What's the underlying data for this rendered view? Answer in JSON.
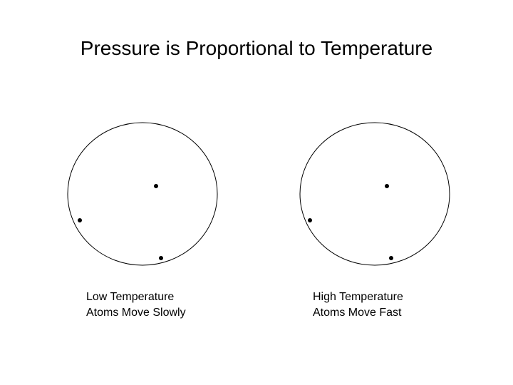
{
  "title": "Pressure is Proportional to Temperature",
  "panels": [
    {
      "caption_line1": "Low Temperature",
      "caption_line2": "Atoms Move Slowly"
    },
    {
      "caption_line1": "High Temperature",
      "caption_line2": "Atoms Move Fast"
    }
  ],
  "colors": {
    "outline": "#000000",
    "atom": "#000000",
    "background": "#ffffff"
  }
}
